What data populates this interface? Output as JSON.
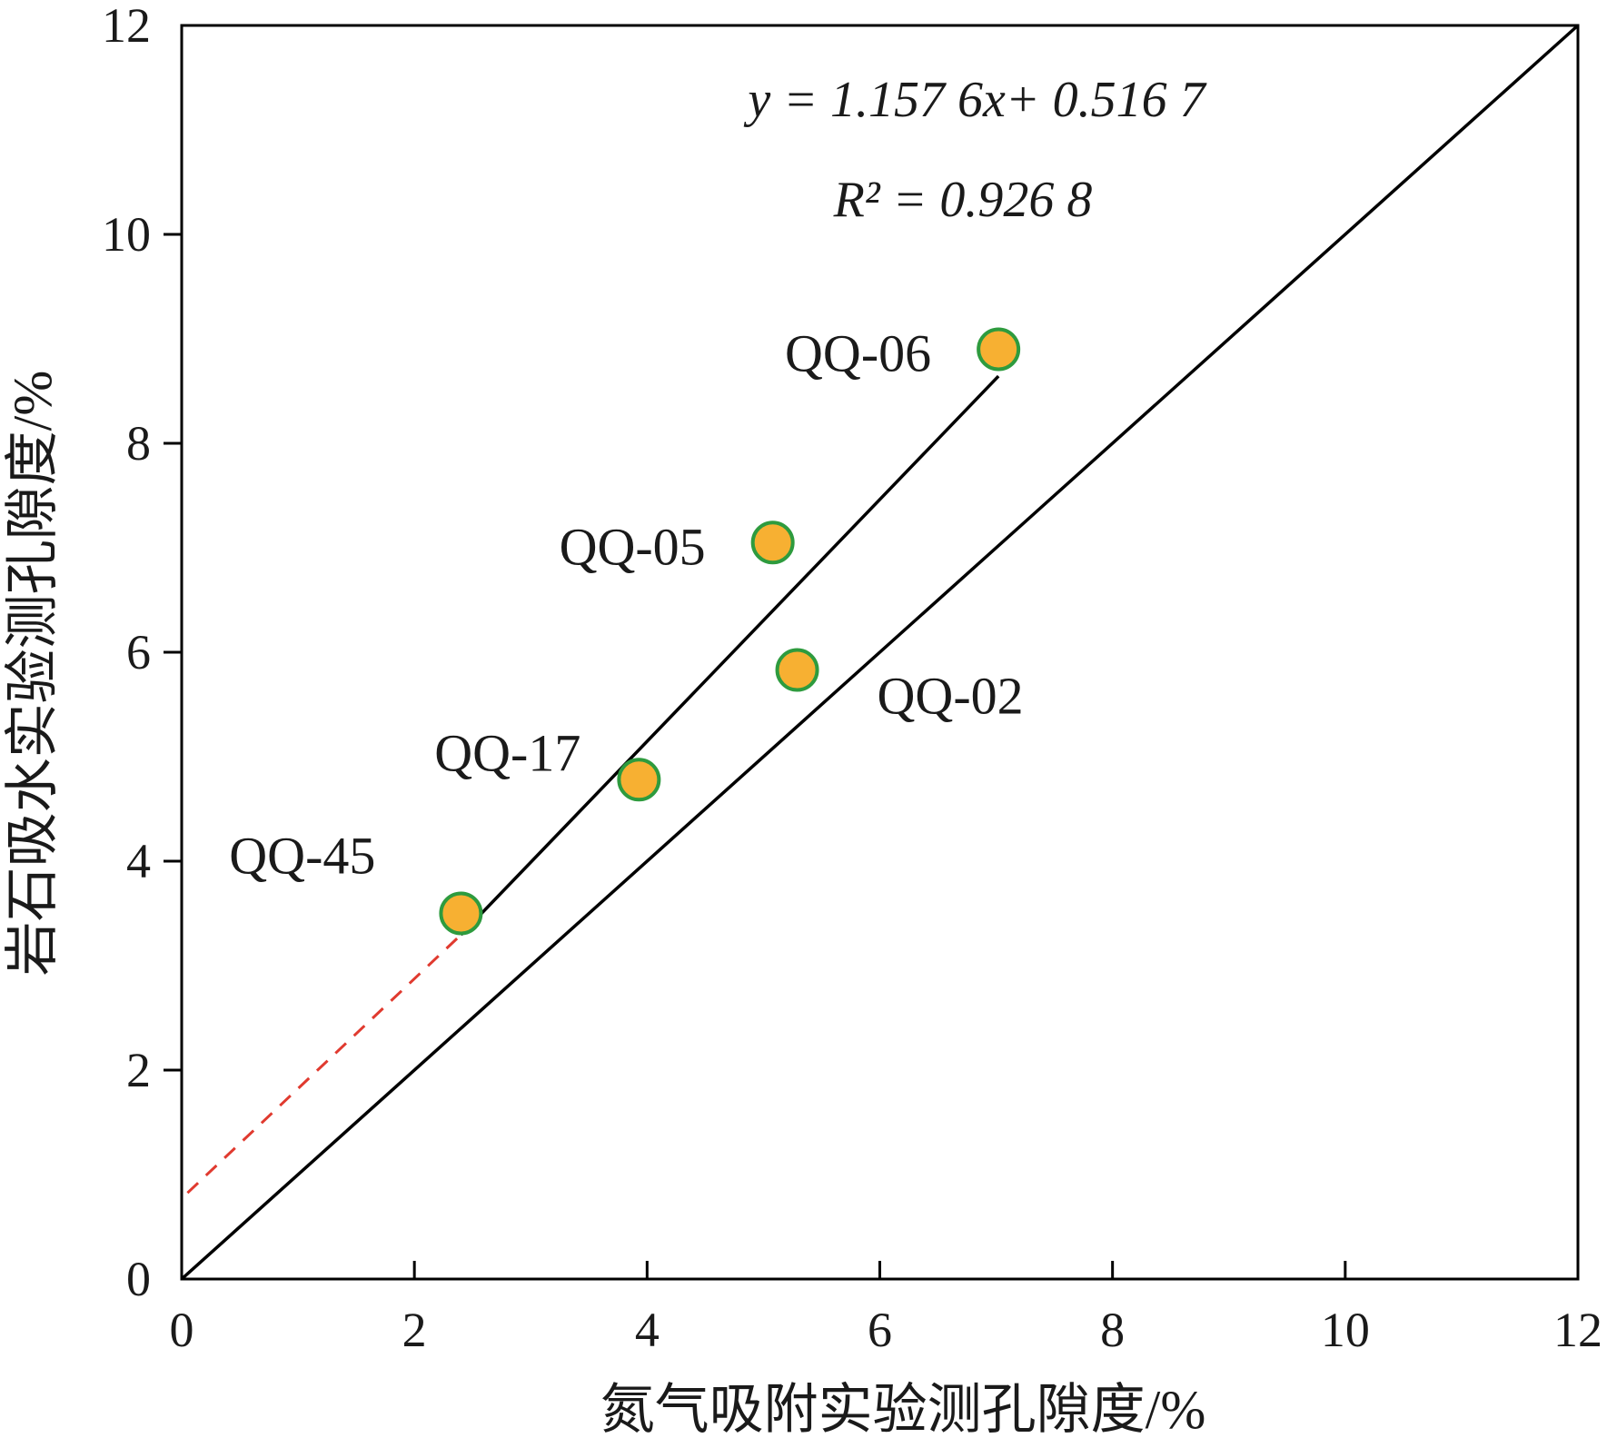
{
  "chart_data": {
    "type": "scatter",
    "title": "",
    "xlabel": "氮气吸附实验测孔隙度/%",
    "ylabel": "岩石吸水实验测孔隙度/%",
    "xlim": [
      0,
      12
    ],
    "ylim": [
      0,
      12
    ],
    "xticks": [
      0,
      2,
      4,
      6,
      8,
      10,
      12
    ],
    "yticks": [
      0,
      2,
      4,
      6,
      8,
      10,
      12
    ],
    "grid": false,
    "points": [
      {
        "label": "QQ-45",
        "x": 2.4,
        "y": 3.5
      },
      {
        "label": "QQ-17",
        "x": 3.93,
        "y": 4.78
      },
      {
        "label": "QQ-05",
        "x": 5.08,
        "y": 7.05
      },
      {
        "label": "QQ-02",
        "x": 5.29,
        "y": 5.83
      },
      {
        "label": "QQ-06",
        "x": 7.02,
        "y": 8.9
      }
    ],
    "fit": {
      "equation": "y = 1.157 6x+ 0.516 7",
      "r2": "R² = 0.926 8",
      "slope": 1.1576,
      "intercept": 0.5167,
      "x_range": [
        2.4,
        7.02
      ]
    },
    "fit_extrapolation": {
      "x_range": [
        0.05,
        2.4
      ],
      "style": "dashed",
      "color": "#e03a2f"
    },
    "reference_line": {
      "slope": 1,
      "intercept": 0
    },
    "colors": {
      "point_fill": "#f7b032",
      "point_stroke": "#2e9b3e",
      "line": "#000000"
    }
  }
}
